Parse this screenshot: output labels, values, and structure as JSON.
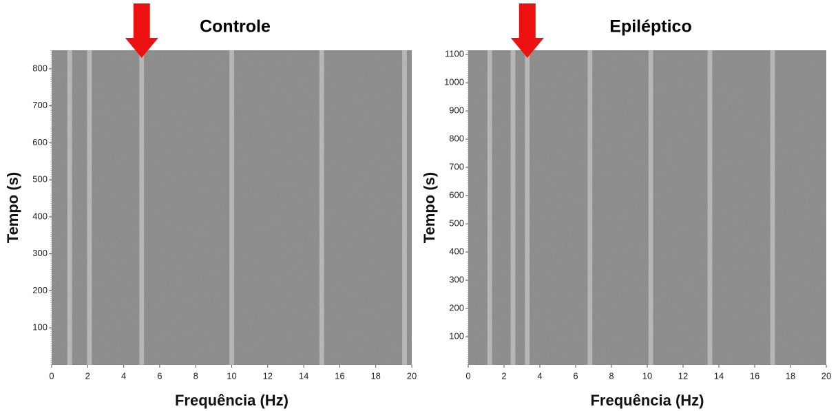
{
  "chart_data": [
    {
      "type": "heatmap",
      "title": "Controle",
      "xlabel": "Frequência (Hz)",
      "ylabel": "Tempo (s)",
      "xlim": [
        0,
        20
      ],
      "xticks": [
        0,
        2,
        4,
        6,
        8,
        10,
        12,
        14,
        16,
        18,
        20
      ],
      "ylim": [
        0,
        850
      ],
      "yticks": [
        100,
        200,
        300,
        400,
        500,
        600,
        700,
        800
      ],
      "peaks": [
        1.0,
        2.1,
        5.0,
        10.0,
        15.0,
        19.6
      ],
      "arrow_at": 5.0
    },
    {
      "type": "heatmap",
      "title": "Epiléptico",
      "xlabel": "Frequência (Hz)",
      "ylabel": "Tempo (s)",
      "xlim": [
        0,
        20
      ],
      "xticks": [
        0,
        2,
        4,
        6,
        8,
        10,
        12,
        14,
        16,
        18,
        20
      ],
      "ylim": [
        0,
        1115
      ],
      "yticks": [
        100,
        200,
        300,
        400,
        500,
        600,
        700,
        800,
        900,
        1000,
        1100
      ],
      "peaks": [
        1.2,
        2.5,
        3.3,
        6.8,
        10.2,
        13.5,
        17.0
      ],
      "arrow_at": 3.3
    }
  ]
}
